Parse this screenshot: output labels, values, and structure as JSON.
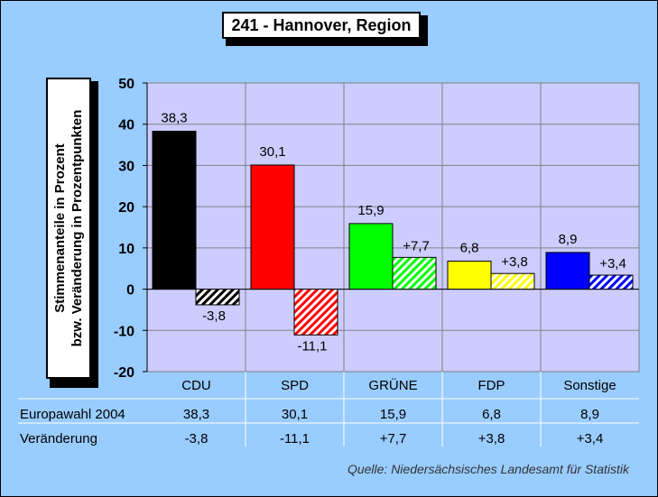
{
  "chart_data": {
    "type": "bar",
    "title": "241 - Hannover, Region",
    "ylabel_line1": "Stimmenanteile in Prozent",
    "ylabel_line2": "bzw. Veränderung in Prozentpunkten",
    "ylim": [
      -20,
      50
    ],
    "yticks": [
      50,
      40,
      30,
      20,
      10,
      0,
      -10,
      -20
    ],
    "categories": [
      "CDU",
      "SPD",
      "GRÜNE",
      "FDP",
      "Sonstige"
    ],
    "series": [
      {
        "name": "Europawahl 2004",
        "values": [
          38.3,
          30.1,
          15.9,
          6.8,
          8.9
        ],
        "labels": [
          "38,3",
          "30,1",
          "15,9",
          "6,8",
          "8,9"
        ]
      },
      {
        "name": "Veränderung",
        "values": [
          -3.8,
          -11.1,
          7.7,
          3.8,
          3.4
        ],
        "labels": [
          "-3,8",
          "-11,1",
          "+7,7",
          "+3,8",
          "+3,4"
        ]
      }
    ],
    "colors": [
      "#000000",
      "#ff0000",
      "#00ff00",
      "#ffff00",
      "#0000ff"
    ],
    "grid": true
  },
  "source": "Quelle: Niedersächsisches Landesamt für Statistik"
}
